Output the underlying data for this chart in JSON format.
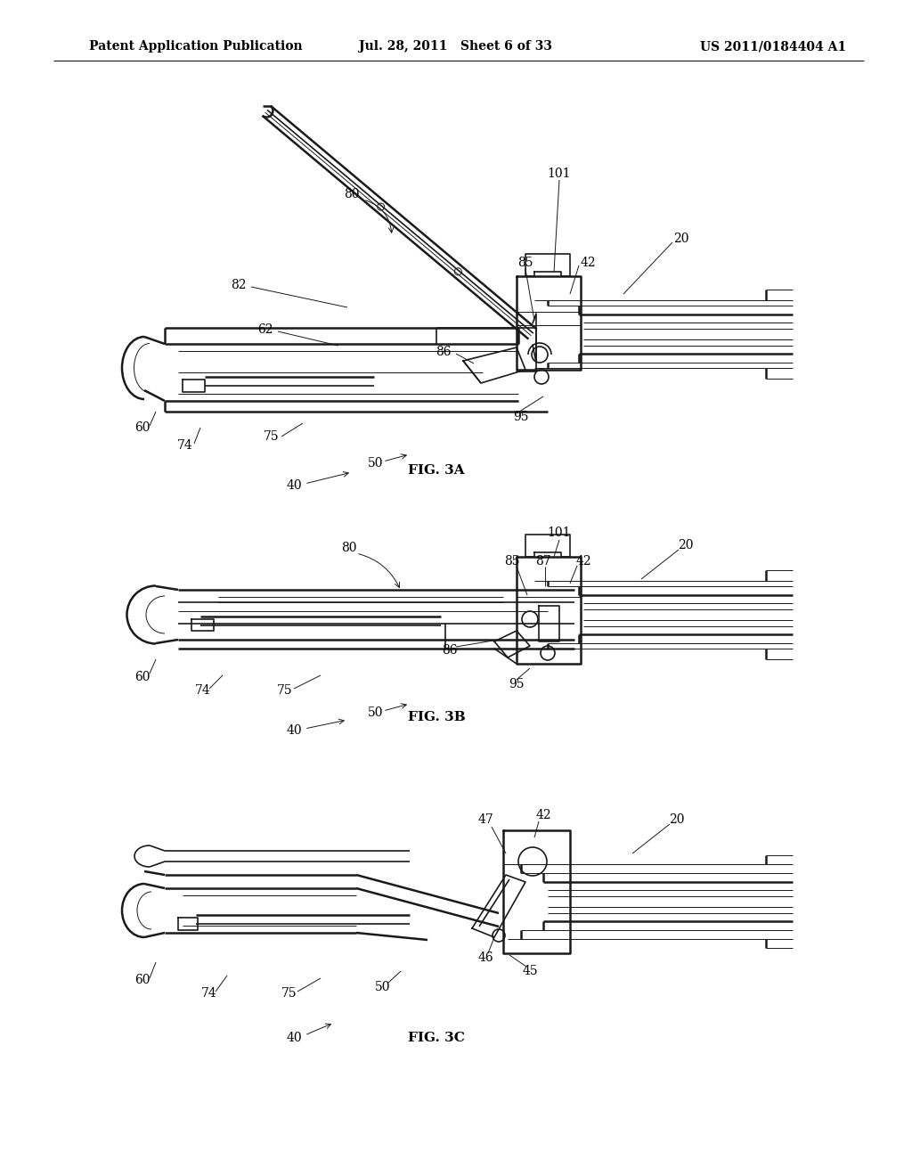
{
  "background_color": "#ffffff",
  "header_left": "Patent Application Publication",
  "header_center": "Jul. 28, 2011   Sheet 6 of 33",
  "header_right": "US 2011/0184404 A1",
  "header_fontsize": 10,
  "line_color": "#1a1a1a",
  "lw_thick": 1.8,
  "lw_med": 1.2,
  "lw_thin": 0.7,
  "label_fontsize": 10,
  "fig_label_fontsize": 11,
  "fig3a_label": "FIG. 3A",
  "fig3b_label": "FIG. 3B",
  "fig3c_label": "FIG. 3C"
}
